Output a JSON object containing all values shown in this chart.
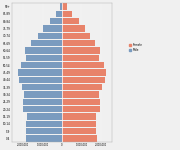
{
  "title": "",
  "xlabel": "",
  "ylabel": "",
  "male_color": "#7a9bbf",
  "female_color": "#e8836a",
  "background_color": "#f0f0f0",
  "legend_female": "Female",
  "legend_male": "Male",
  "age_groups": [
    "90+",
    "85-89",
    "80-84",
    "75-79",
    "70-74",
    "65-69",
    "60-64",
    "55-59",
    "50-54",
    "45-49",
    "40-44",
    "35-39",
    "30-34",
    "25-29",
    "20-24",
    "15-19",
    "10-14",
    "5-9",
    "0-4"
  ],
  "males": [
    107836,
    317750,
    641248,
    981860,
    1262194,
    1598464,
    1902419,
    1864902,
    2139723,
    2287616,
    2219905,
    2068009,
    1967173,
    2006890,
    2015621,
    1835774,
    1856296,
    1849503,
    1879885
  ],
  "females": [
    268999,
    530752,
    890409,
    1186064,
    1419062,
    1705708,
    1959792,
    1896098,
    2152991,
    2292956,
    2206955,
    2063888,
    1930344,
    1953619,
    1954767,
    1758113,
    1762811,
    1759218,
    1786645
  ],
  "xlim": 2600000,
  "xticks": [
    -2000000,
    -1000000,
    0,
    1000000,
    2000000
  ],
  "xticklabels": [
    "2,000,000",
    "1,000,000",
    "0",
    "1,000,000",
    "2,000,000"
  ]
}
